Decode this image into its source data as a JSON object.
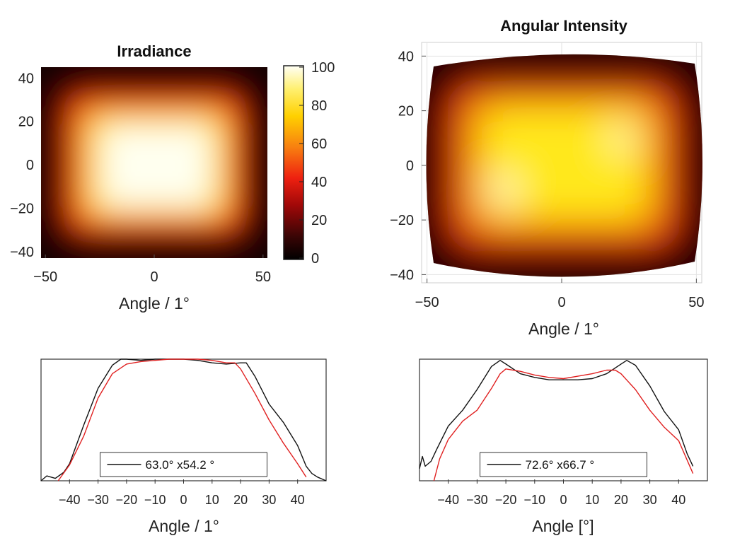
{
  "chart_data": [
    {
      "id": "irradiance-map",
      "type": "heatmap",
      "title": "Irradiance",
      "xlabel": "Angle / 1°",
      "ylabel": "",
      "xlim": [
        -52,
        52
      ],
      "ylim": [
        -43,
        45
      ],
      "xticks": [
        -50,
        0,
        50
      ],
      "yticks": [
        40,
        20,
        0,
        -20,
        -40
      ],
      "colorbar": {
        "min": 0,
        "max": 100,
        "ticks": [
          100,
          80,
          60,
          40,
          20,
          0
        ]
      },
      "plateau": {
        "x_half_width": 26,
        "y_half_width": 24,
        "peak": 100
      }
    },
    {
      "id": "angular-intensity-map",
      "type": "heatmap",
      "title": "Angular Intensity",
      "xlabel": "Angle / 1°",
      "ylabel": "",
      "xlim": [
        -52,
        52
      ],
      "ylim": [
        -43,
        45
      ],
      "xticks": [
        -50,
        0,
        50
      ],
      "yticks": [
        40,
        20,
        0,
        -20,
        -40
      ],
      "grid": true,
      "plateau": {
        "x_half_width": 30,
        "y_half_width": 28,
        "peak": 85
      }
    },
    {
      "id": "irradiance-profile",
      "type": "line",
      "xlabel": "Angle / 1°",
      "xlim": [
        -50,
        50
      ],
      "xticks": [
        -40,
        -30,
        -20,
        -10,
        0,
        10,
        20,
        30,
        40
      ],
      "ylim": [
        0,
        1
      ],
      "legend": {
        "label": "63.0° x54.2 °",
        "placement": "bottom-center"
      },
      "series": [
        {
          "color": "#111111",
          "x": [
            -50,
            -48,
            -45,
            -42,
            -40,
            -35,
            -30,
            -25,
            -22,
            -20,
            -15,
            -10,
            -5,
            0,
            5,
            10,
            15,
            20,
            22,
            25,
            30,
            35,
            40,
            43,
            45,
            47,
            50
          ],
          "y": [
            0.0,
            0.04,
            0.02,
            0.07,
            0.14,
            0.46,
            0.76,
            0.95,
            1.0,
            1.0,
            0.99,
            1.0,
            1.0,
            1.0,
            0.99,
            0.97,
            0.96,
            0.97,
            0.97,
            0.86,
            0.63,
            0.48,
            0.29,
            0.12,
            0.06,
            0.03,
            0.0
          ]
        },
        {
          "color": "#e02020",
          "x": [
            -44,
            -40,
            -35,
            -30,
            -25,
            -20,
            -15,
            -10,
            -5,
            0,
            5,
            10,
            15,
            18,
            20,
            25,
            30,
            35,
            40,
            43
          ],
          "y": [
            0.0,
            0.13,
            0.37,
            0.68,
            0.88,
            0.96,
            0.98,
            0.99,
            1.0,
            1.0,
            1.0,
            0.99,
            0.97,
            0.97,
            0.92,
            0.72,
            0.5,
            0.31,
            0.14,
            0.03
          ]
        }
      ]
    },
    {
      "id": "angular-profile",
      "type": "line",
      "xlabel": "Angle [°]",
      "xlim": [
        -50,
        50
      ],
      "xticks": [
        -40,
        -30,
        -20,
        -10,
        0,
        10,
        20,
        30,
        40
      ],
      "ylim": [
        0,
        1
      ],
      "legend": {
        "label": "72.6° x66.7 °",
        "placement": "bottom-center"
      },
      "series": [
        {
          "color": "#111111",
          "x": [
            -50,
            -49,
            -48,
            -46,
            -44,
            -40,
            -35,
            -30,
            -25,
            -22,
            -20,
            -15,
            -10,
            -5,
            0,
            5,
            10,
            15,
            20,
            22,
            25,
            30,
            35,
            40,
            43,
            45
          ],
          "y": [
            0.1,
            0.2,
            0.12,
            0.16,
            0.26,
            0.45,
            0.58,
            0.75,
            0.94,
            0.99,
            0.96,
            0.88,
            0.85,
            0.83,
            0.83,
            0.83,
            0.84,
            0.88,
            0.96,
            0.99,
            0.95,
            0.78,
            0.57,
            0.42,
            0.22,
            0.12
          ]
        },
        {
          "color": "#e02020",
          "x": [
            -45,
            -43,
            -40,
            -35,
            -30,
            -25,
            -22,
            -20,
            -15,
            -10,
            -5,
            0,
            5,
            10,
            15,
            18,
            20,
            25,
            30,
            35,
            40,
            45
          ],
          "y": [
            0.0,
            0.18,
            0.34,
            0.49,
            0.58,
            0.76,
            0.88,
            0.92,
            0.9,
            0.87,
            0.85,
            0.84,
            0.86,
            0.88,
            0.91,
            0.91,
            0.88,
            0.75,
            0.58,
            0.44,
            0.33,
            0.06
          ]
        }
      ]
    }
  ]
}
